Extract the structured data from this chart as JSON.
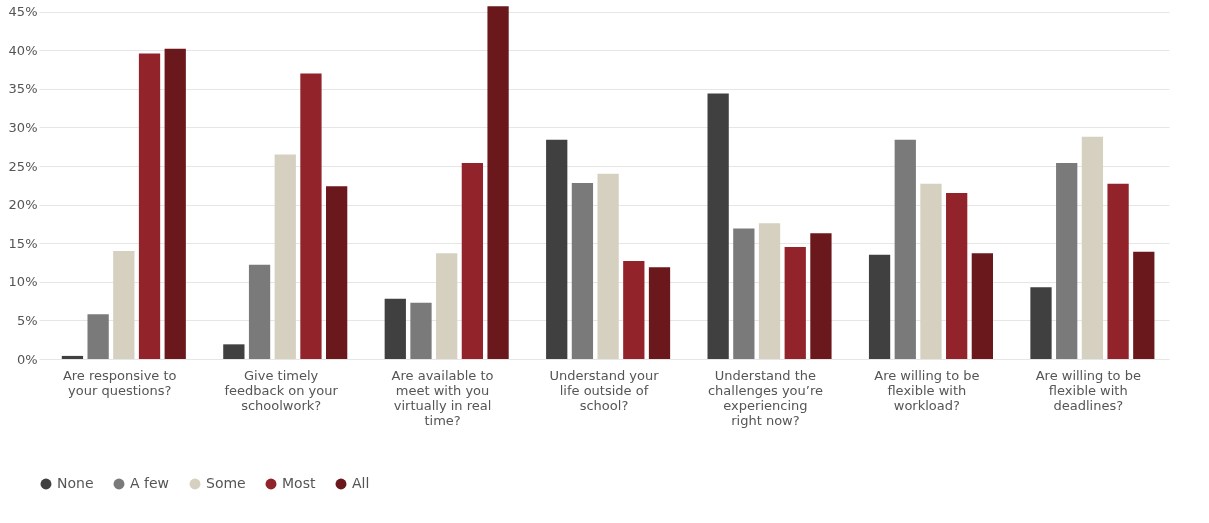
{
  "chart_data": {
    "type": "bar",
    "categories": [
      "Are responsive to your questions?",
      "Give timely feedback on your schoolwork?",
      "Are available to meet with you virtually in real time?",
      "Understand your life outside of school?",
      "Understand the challenges you’re experiencing right now?",
      "Are willing to be flexible with workload?",
      "Are willing to be flexible with deadlines?"
    ],
    "series": [
      {
        "name": "None",
        "color": "#404040",
        "values": [
          0.4,
          1.9,
          7.8,
          28.4,
          34.4,
          13.5,
          9.3
        ]
      },
      {
        "name": "A few",
        "color": "#7a7a7a",
        "values": [
          5.8,
          12.2,
          7.3,
          22.8,
          16.9,
          28.4,
          25.4
        ]
      },
      {
        "name": "Some",
        "color": "#d6d0c0",
        "values": [
          14.0,
          26.5,
          13.7,
          24.0,
          17.6,
          22.7,
          28.8
        ]
      },
      {
        "name": "Most",
        "color": "#92232a",
        "values": [
          39.6,
          37.0,
          25.4,
          12.7,
          14.5,
          21.5,
          22.7
        ]
      },
      {
        "name": "All",
        "color": "#6b181d",
        "values": [
          40.2,
          22.4,
          45.7,
          11.9,
          16.3,
          13.7,
          13.9
        ]
      }
    ],
    "ylim": [
      0,
      46
    ],
    "yticks": [
      {
        "value": 0,
        "label": "0%"
      },
      {
        "value": 5,
        "label": "5%"
      },
      {
        "value": 10,
        "label": "10%"
      },
      {
        "value": 15,
        "label": "15%"
      },
      {
        "value": 20,
        "label": "20%"
      },
      {
        "value": 25,
        "label": "25%"
      },
      {
        "value": 30,
        "label": "30%"
      },
      {
        "value": 35,
        "label": "35%"
      },
      {
        "value": 40,
        "label": "40%"
      },
      {
        "value": 45,
        "label": "45%"
      }
    ],
    "grid": "y",
    "legend": "bottom left"
  }
}
